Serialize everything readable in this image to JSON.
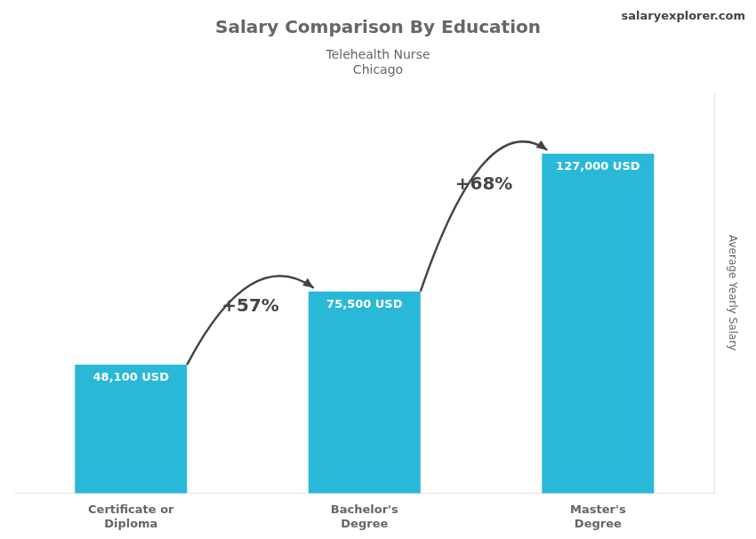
{
  "chart_data": {
    "type": "bar",
    "title": "Salary Comparison By Education",
    "subtitle": [
      "Telehealth Nurse",
      "Chicago"
    ],
    "ylabel": "Average Yearly Salary",
    "categories": [
      "Certificate or\nDiploma",
      "Bachelor's\nDegree",
      "Master's\nDegree"
    ],
    "values": [
      48100,
      75500,
      127000
    ],
    "value_labels": [
      "48,100 USD",
      "75,500 USD",
      "127,000 USD"
    ],
    "data_labels": true,
    "color": "#29b8d8",
    "ylim": [
      0,
      150000
    ],
    "tick_labels": "x",
    "grid": false,
    "annotations": [
      {
        "text": "+57%",
        "between": [
          "Certificate or\nDiploma",
          "Bachelor's\nDegree"
        ]
      },
      {
        "text": "+68%",
        "between": [
          "Bachelor's\nDegree",
          "Master's\nDegree"
        ]
      },
      {
        "text": "salaryexplorer.com"
      }
    ]
  }
}
